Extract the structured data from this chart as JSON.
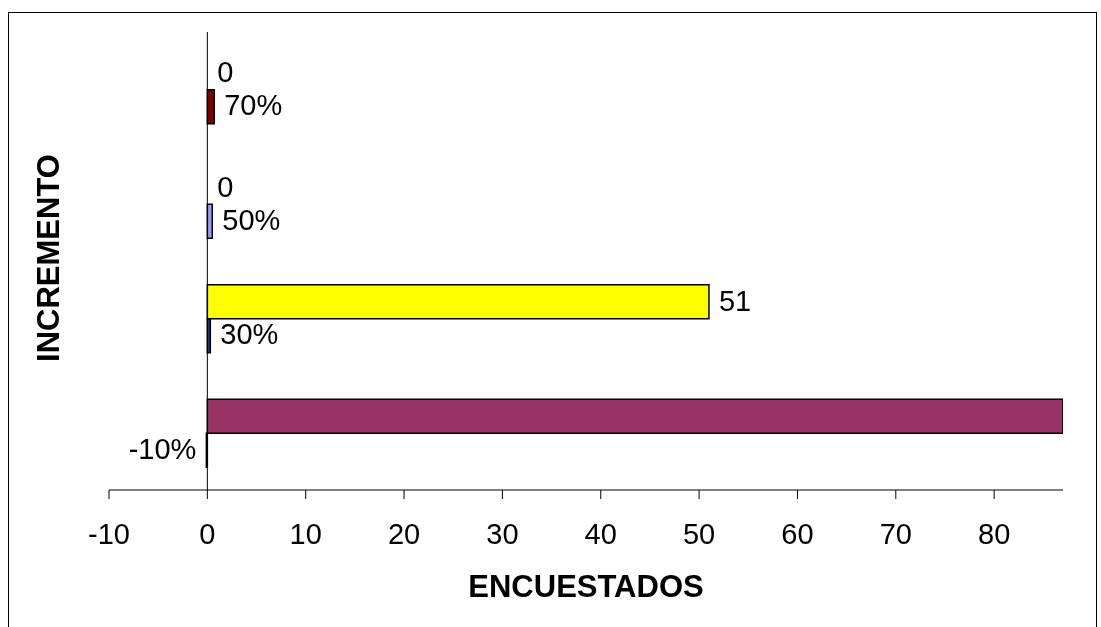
{
  "chart_data": {
    "type": "bar",
    "orientation": "horizontal",
    "xlabel": "ENCUESTADOS",
    "ylabel": "INCREMENTO",
    "categories": [
      null,
      null,
      null,
      null
    ],
    "series": [
      {
        "colors": [
          "#ffff00",
          "#9999ff",
          "#ffff00",
          "#993366"
        ],
        "values": [
          0,
          0,
          51,
          87
        ],
        "value_labels": [
          "0",
          "0",
          "51",
          null
        ]
      },
      {
        "colors": [
          "#800000",
          "#9999ff",
          "#333399",
          "#222222"
        ],
        "values": [
          0.7,
          0.5,
          0.3,
          -0.1
        ],
        "value_labels": [
          "70%",
          "50%",
          "30%",
          "-10%"
        ]
      }
    ],
    "xlim": [
      -10,
      87
    ],
    "xticks": [
      -10,
      0,
      10,
      20,
      30,
      40,
      50,
      60,
      70,
      80
    ],
    "tick_labels": "x"
  }
}
